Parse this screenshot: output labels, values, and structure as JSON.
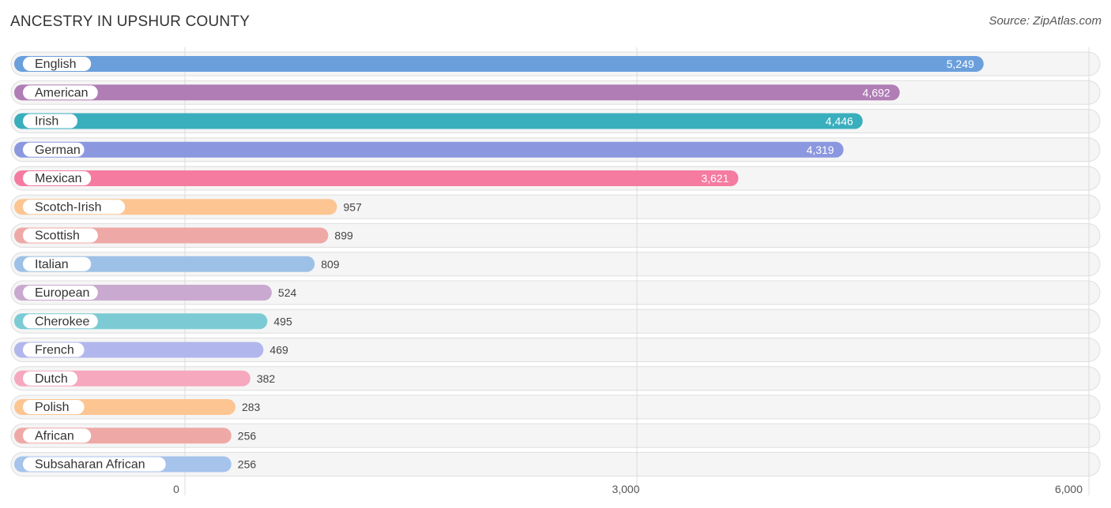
{
  "title": "ANCESTRY IN UPSHUR COUNTY",
  "source": "Source: ZipAtlas.com",
  "chart_data": {
    "type": "bar",
    "orientation": "horizontal",
    "categories": [
      "English",
      "American",
      "Irish",
      "German",
      "Mexican",
      "Scotch-Irish",
      "Scottish",
      "Italian",
      "European",
      "Cherokee",
      "French",
      "Dutch",
      "Polish",
      "African",
      "Subsaharan African"
    ],
    "values": [
      5249,
      4692,
      4446,
      4319,
      3621,
      957,
      899,
      809,
      524,
      495,
      469,
      382,
      283,
      256,
      256
    ],
    "value_labels": [
      "5,249",
      "4,692",
      "4,446",
      "4,319",
      "3,621",
      "957",
      "899",
      "809",
      "524",
      "495",
      "469",
      "382",
      "283",
      "256",
      "256"
    ],
    "colors": [
      "#6a9fdc",
      "#b07db5",
      "#39aebd",
      "#8b98e0",
      "#f57ba1",
      "#fcc592",
      "#eea9a6",
      "#9dc0e6",
      "#c9a9cf",
      "#7ccbd4",
      "#b1b7ec",
      "#f6a8be",
      "#fcc592",
      "#eea9a6",
      "#a6c3ec"
    ],
    "xlim": [
      0,
      6000
    ],
    "ticks": [
      0,
      3000,
      6000
    ],
    "tick_labels": [
      "0",
      "3,000",
      "6,000"
    ],
    "grid": true,
    "xlabel": "",
    "ylabel": ""
  }
}
